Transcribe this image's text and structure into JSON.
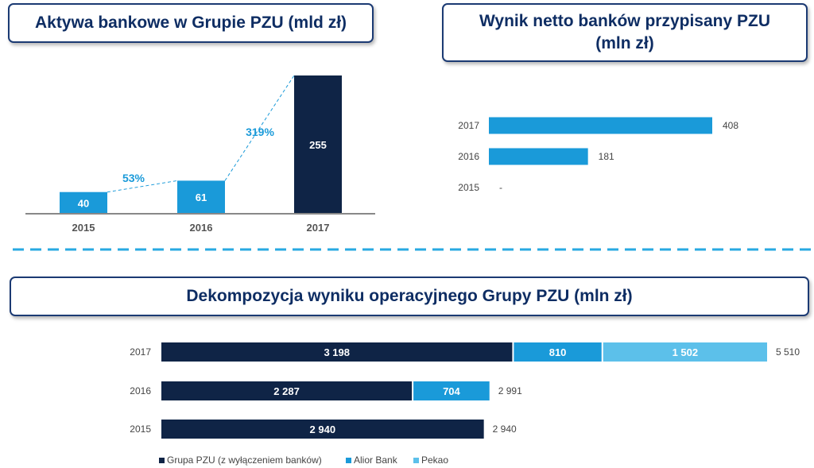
{
  "colors": {
    "dark": "#0f2446",
    "mid": "#1a9ad9",
    "light": "#5cc0ea",
    "title": "#0e2d63",
    "divider": "#28a9e1"
  },
  "assets_title": "Aktywa bankowe w Grupie PZU (mld zł)",
  "net_title_line1": "Wynik netto banków przypisany PZU",
  "net_title_line2": "(mln zł)",
  "decomp_title": "Dekompozycja wyniku operacyjnego Grupy PZU (mln zł)",
  "chart_data": [
    {
      "type": "bar",
      "title": "Aktywa bankowe w Grupie PZU (mld zł)",
      "categories": [
        "2015",
        "2016",
        "2017"
      ],
      "values": [
        40,
        61,
        255
      ],
      "labels": [
        "40",
        "61",
        "255"
      ],
      "growth": [
        {
          "from": "2015",
          "to": "2016",
          "label": "53%"
        },
        {
          "from": "2016",
          "to": "2017",
          "label": "319%"
        }
      ],
      "ylim": [
        0,
        255
      ]
    },
    {
      "type": "bar",
      "orientation": "horizontal",
      "title": "Wynik netto banków przypisany PZU (mln zł)",
      "categories": [
        "2017",
        "2016",
        "2015"
      ],
      "values": [
        408,
        181,
        0
      ],
      "labels": [
        "408",
        "181",
        "-"
      ],
      "xlim": [
        0,
        408
      ]
    },
    {
      "type": "bar",
      "orientation": "horizontal",
      "stacked": true,
      "title": "Dekompozycja wyniku operacyjnego Grupy PZU (mln zł)",
      "categories": [
        "2017",
        "2016",
        "2015"
      ],
      "series": [
        {
          "name": "Grupa PZU (z wyłączeniem banków)",
          "values": [
            3198,
            2287,
            2940
          ],
          "labels": [
            "3 198",
            "2 287",
            "2 940"
          ]
        },
        {
          "name": "Alior Bank",
          "values": [
            810,
            704,
            0
          ],
          "labels": [
            "810",
            "704",
            ""
          ]
        },
        {
          "name": "Pekao",
          "values": [
            1502,
            0,
            0
          ],
          "labels": [
            "1 502",
            "",
            ""
          ]
        }
      ],
      "totals": [
        "5 510",
        "2 991",
        "2 940"
      ],
      "xlim": [
        0,
        5510
      ]
    }
  ]
}
